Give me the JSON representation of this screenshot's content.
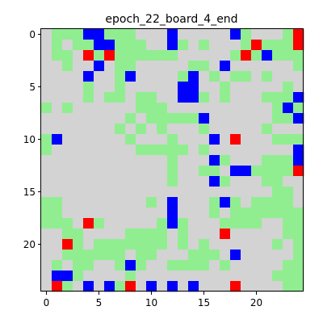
{
  "chart_data": {
    "type": "heatmap",
    "title": "epoch_22_board_4_end",
    "xlabel": "",
    "ylabel": "",
    "xlim": [
      -0.5,
      24.5
    ],
    "ylim": [
      24.5,
      -0.5
    ],
    "xticks": [
      0,
      5,
      10,
      15,
      20
    ],
    "yticks": [
      0,
      5,
      10,
      15,
      20
    ],
    "grid": false,
    "legend": "none",
    "colors": {
      "0": "#d3d3d3",
      "1": "#90ee90",
      "2": "#0000ff",
      "3": "#ff0000"
    },
    "rows": [
      "0111221110002000002100013",
      "0101122111002101000131113",
      "0110313111111000001312111",
      "0010020110000011020000001",
      "0000200120000120101101000",
      "0000100100000220010000010",
      "0000101101100221010001112",
      "1010000001110000000000121",
      "0000000010111112000000112",
      "0000000101010001000001000",
      "1200000010001000203000111",
      "1000000001111101000000002",
      "0000000000001000210001112",
      "0000000000001001102211113",
      "0000000000001000210001100",
      "0000000000000000000000110",
      "1100000000102000121011110",
      "1100000000002000101111111",
      "1110310000012100011110011",
      "0011000011110100030000011",
      "0031011111110101000000101",
      "0011111101100011102000001",
      "0101100121001111010000011",
      "0221000010000000000000111",
      "0310202130202020003000011"
    ]
  }
}
